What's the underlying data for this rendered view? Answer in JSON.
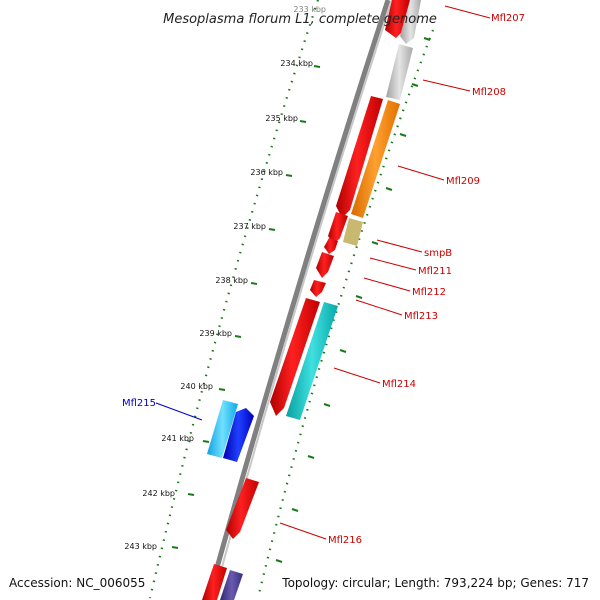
{
  "title": "Mesoplasma florum L1, complete genome",
  "footer": {
    "accession": "Accession: NC_006055",
    "topology": "Topology: circular; Length: 793,224 bp; Genes: 717"
  },
  "ruler_labels": [
    "233 kbp",
    "234 kbp",
    "235 kbp",
    "236 kbp",
    "237 kbp",
    "238 kbp",
    "239 kbp",
    "240 kbp",
    "241 kbp",
    "242 kbp",
    "243 kbp"
  ],
  "gene_labels": [
    {
      "text": "Mfl207",
      "color": "#cc0000"
    },
    {
      "text": "Mfl208",
      "color": "#cc0000"
    },
    {
      "text": "Mfl209",
      "color": "#cc0000"
    },
    {
      "text": "smpB",
      "color": "#cc0000"
    },
    {
      "text": "Mfl211",
      "color": "#cc0000"
    },
    {
      "text": "Mfl212",
      "color": "#cc0000"
    },
    {
      "text": "Mfl213",
      "color": "#cc0000"
    },
    {
      "text": "Mfl214",
      "color": "#cc0000"
    },
    {
      "text": "Mfl215",
      "color": "#0000cc"
    },
    {
      "text": "Mfl216",
      "color": "#cc0000"
    }
  ],
  "colors": {
    "forward_cds": "#ee0000",
    "rna_gene": "#c0c0c0",
    "orange_gene": "#ff8c00",
    "tmrna_gene": "#c8b870",
    "teal_gene": "#10c8c8",
    "reverse_light": "#30c0f0",
    "reverse_dark": "#0010e0",
    "reverse_purple": "#504090",
    "backbone": "#909090",
    "tick_green": "#1a7a1a"
  }
}
